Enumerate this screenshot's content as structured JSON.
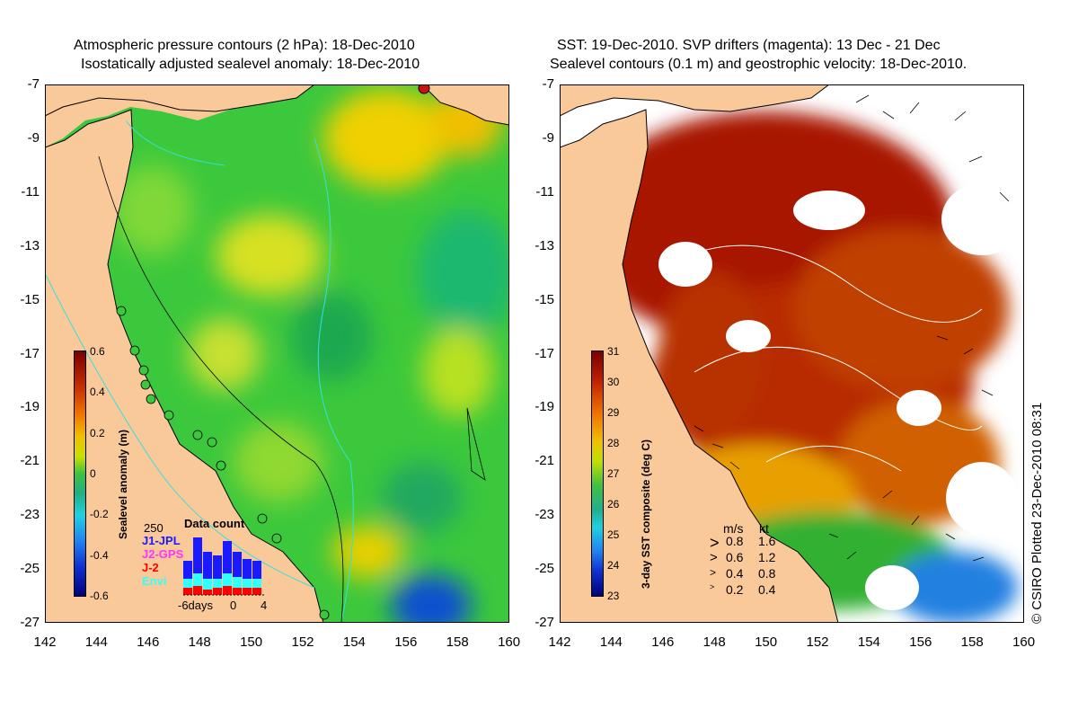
{
  "left_title": {
    "line1": "Atmospheric pressure contours (2 hPa): 18-Dec-2010",
    "line2": "Isostatically adjusted sealevel anomaly: 18-Dec-2010"
  },
  "right_title": {
    "line1": "SST: 19-Dec-2010. SVP drifters (magenta): 13 Dec - 21 Dec",
    "line2": "Sealevel contours (0.1 m) and geostrophic velocity: 18-Dec-2010."
  },
  "axes": {
    "y_ticks": [
      "-7",
      "-9",
      "-11",
      "-13",
      "-15",
      "-17",
      "-19",
      "-21",
      "-23",
      "-25",
      "-27"
    ],
    "x_ticks": [
      "142",
      "144",
      "146",
      "148",
      "150",
      "152",
      "154",
      "156",
      "158",
      "160"
    ],
    "lon_range": [
      142,
      160
    ],
    "lat_range": [
      -27,
      -7
    ]
  },
  "left_colorbar": {
    "title": "Sealevel anomaly (m)",
    "labels": [
      "0.6",
      "0.4",
      "0.2",
      "0",
      "-0.2",
      "-0.4",
      "-0.6"
    ]
  },
  "right_colorbar": {
    "title": "3-day SST composite (deg C)",
    "labels": [
      "31",
      "30",
      "29",
      "28",
      "27",
      "26",
      "25",
      "24",
      "23"
    ]
  },
  "data_count": {
    "title": "Data count",
    "max_label": "250",
    "x_labels": [
      "-6days",
      "0",
      "4"
    ],
    "legend": [
      {
        "name": "J1-JPL",
        "color": "#1a1aff"
      },
      {
        "name": "J2-GPS",
        "color": "#ff33ff"
      },
      {
        "name": "J-2",
        "color": "#ff0000"
      },
      {
        "name": "Envi",
        "color": "#33ffff"
      }
    ]
  },
  "velocity_legend": {
    "header_ms": "m/s",
    "header_kt": "kt",
    "rows": [
      {
        "ms": "0.8",
        "kt": "1.6"
      },
      {
        "ms": "0.6",
        "kt": "1.2"
      },
      {
        "ms": "0.4",
        "kt": "0.8"
      },
      {
        "ms": "0.2",
        "kt": "0.4"
      }
    ]
  },
  "credit": "© CSIRO Plotted 23-Dec-2010 08:31",
  "colors": {
    "land": "#f9c99a",
    "sla_green": "#3cc83c",
    "sst_red": "#a81400",
    "coast": "#000000",
    "contour_cyan": "#33e0e0"
  }
}
